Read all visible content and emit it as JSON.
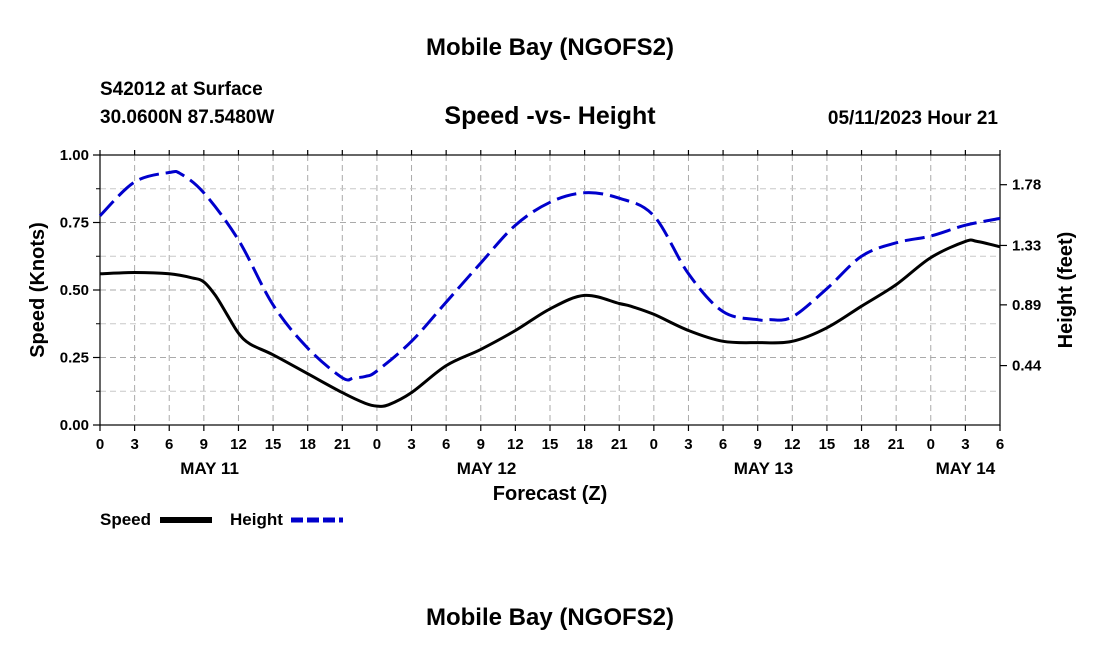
{
  "chart_data": {
    "type": "line",
    "title": "Mobile Bay (NGOFS2)",
    "bottom_title": "Mobile Bay (NGOFS2)",
    "station": "S42012 at Surface",
    "coords": "30.0600N  87.5480W",
    "subtitle": "Speed -vs- Height",
    "datetime": "05/11/2023 Hour 21",
    "xlabel": "Forecast (Z)",
    "ylabel_left": "Speed (Knots)",
    "ylabel_right": "Height (feet)",
    "x_range_hours": [
      0,
      78
    ],
    "x_ticks": [
      0,
      3,
      6,
      9,
      12,
      15,
      18,
      21,
      24,
      27,
      30,
      33,
      36,
      39,
      42,
      45,
      48,
      51,
      54,
      57,
      60,
      63,
      66,
      69,
      72,
      75,
      78
    ],
    "x_tick_labels": [
      "0",
      "3",
      "6",
      "9",
      "12",
      "15",
      "18",
      "21",
      "0",
      "3",
      "6",
      "9",
      "12",
      "15",
      "18",
      "21",
      "0",
      "3",
      "6",
      "9",
      "12",
      "15",
      "18",
      "21",
      "0",
      "3",
      "6"
    ],
    "day_labels": [
      {
        "label": "MAY 11",
        "hour": 9.5
      },
      {
        "label": "MAY 12",
        "hour": 33.5
      },
      {
        "label": "MAY 13",
        "hour": 57.5
      },
      {
        "label": "MAY 14",
        "hour": 75
      }
    ],
    "y_left": {
      "range": [
        0,
        1
      ],
      "ticks": [
        0,
        0.25,
        0.5,
        0.75,
        1.0
      ],
      "tick_labels": [
        "0.00",
        "0.25",
        "0.50",
        "0.75",
        "1.00"
      ]
    },
    "y_right": {
      "range": [
        0,
        2.0
      ],
      "ticks": [
        0.44,
        0.89,
        1.33,
        1.78
      ],
      "tick_labels": [
        "0.44",
        "0.89",
        "1.33",
        "1.78"
      ]
    },
    "series": [
      {
        "name": "Speed",
        "axis": "left",
        "color": "#000000",
        "style": "solid",
        "x": [
          0,
          3,
          6,
          8,
          9,
          10,
          11,
          12,
          13,
          15,
          18,
          21,
          23,
          24,
          25,
          27,
          30,
          33,
          36,
          39,
          42,
          45,
          46,
          48,
          51,
          54,
          57,
          60,
          63,
          66,
          69,
          72,
          75,
          76,
          78
        ],
        "values": [
          0.56,
          0.565,
          0.56,
          0.545,
          0.53,
          0.48,
          0.41,
          0.34,
          0.3,
          0.26,
          0.19,
          0.12,
          0.08,
          0.07,
          0.075,
          0.12,
          0.22,
          0.28,
          0.35,
          0.43,
          0.48,
          0.45,
          0.44,
          0.41,
          0.35,
          0.31,
          0.305,
          0.31,
          0.36,
          0.44,
          0.52,
          0.62,
          0.68,
          0.68,
          0.66
        ]
      },
      {
        "name": "Height",
        "axis": "right",
        "color": "#0000cc",
        "style": "dashed",
        "x": [
          0,
          3,
          6,
          7,
          9,
          12,
          15,
          18,
          21,
          22,
          23,
          24,
          27,
          30,
          33,
          36,
          39,
          42,
          45,
          48,
          51,
          54,
          57,
          58,
          60,
          63,
          66,
          69,
          72,
          75,
          78
        ],
        "values": [
          1.55,
          1.8,
          1.87,
          1.86,
          1.72,
          1.37,
          0.89,
          0.57,
          0.35,
          0.35,
          0.36,
          0.4,
          0.62,
          0.91,
          1.2,
          1.48,
          1.65,
          1.72,
          1.68,
          1.55,
          1.12,
          0.84,
          0.78,
          0.78,
          0.8,
          1.01,
          1.25,
          1.35,
          1.4,
          1.48,
          1.53
        ]
      }
    ],
    "legend": [
      {
        "label": "Speed",
        "color": "#000000",
        "style": "solid"
      },
      {
        "label": "Height",
        "color": "#0000cc",
        "style": "dashed"
      }
    ],
    "grid": true
  }
}
